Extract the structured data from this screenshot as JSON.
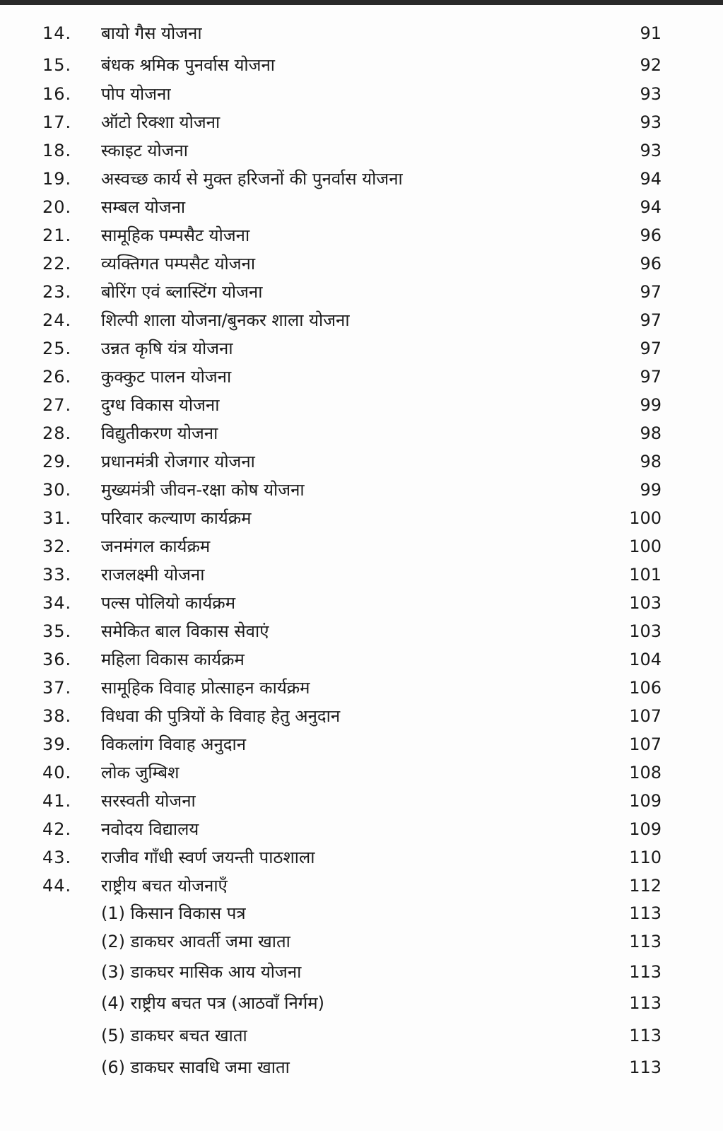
{
  "entries": [
    {
      "num": "14.",
      "title": "बायो गैस योजना",
      "page": "91"
    },
    {
      "num": "15.",
      "title": "बंधक श्रमिक पुनर्वास योजना",
      "page": "92"
    },
    {
      "num": "16.",
      "title": "पोप योजना",
      "page": "93"
    },
    {
      "num": "17.",
      "title": "ऑटो रिक्शा योजना",
      "page": "93"
    },
    {
      "num": "18.",
      "title": "स्काइट योजना",
      "page": "93"
    },
    {
      "num": "19.",
      "title": "अस्वच्छ कार्य से मुक्त हरिजनों की पुनर्वास योजना",
      "page": "94"
    },
    {
      "num": "20.",
      "title": "सम्बल योजना",
      "page": "94"
    },
    {
      "num": "21.",
      "title": "सामूहिक पम्पसैट योजना",
      "page": "96"
    },
    {
      "num": "22.",
      "title": "व्यक्तिगत पम्पसैट योजना",
      "page": "96"
    },
    {
      "num": "23.",
      "title": "बोरिंग एवं ब्लास्टिंग योजना",
      "page": "97"
    },
    {
      "num": "24.",
      "title": "शिल्पी शाला योजना/बुनकर शाला योजना",
      "page": "97"
    },
    {
      "num": "25.",
      "title": "उन्नत कृषि यंत्र योजना",
      "page": "97"
    },
    {
      "num": "26.",
      "title": "कुक्कुट पालन योजना",
      "page": "97"
    },
    {
      "num": "27.",
      "title": "दुग्ध विकास योजना",
      "page": "99"
    },
    {
      "num": "28.",
      "title": "विद्युतीकरण योजना",
      "page": "98"
    },
    {
      "num": "29.",
      "title": "प्रधानमंत्री रोजगार योजना",
      "page": "98"
    },
    {
      "num": "30.",
      "title": "मुख्यमंत्री जीवन-रक्षा कोष योजना",
      "page": "99"
    },
    {
      "num": "31.",
      "title": "परिवार कल्याण कार्यक्रम",
      "page": "100"
    },
    {
      "num": "32.",
      "title": "जनमंगल कार्यक्रम",
      "page": "100"
    },
    {
      "num": "33.",
      "title": "राजलक्ष्मी योजना",
      "page": "101"
    },
    {
      "num": "34.",
      "title": "पल्स पोलियो कार्यक्रम",
      "page": "103"
    },
    {
      "num": "35.",
      "title": "समेकित बाल विकास सेवाएं",
      "page": "103"
    },
    {
      "num": "36.",
      "title": "महिला विकास कार्यक्रम",
      "page": "104"
    },
    {
      "num": "37.",
      "title": "सामूहिक विवाह प्रोत्साहन कार्यक्रम",
      "page": "106"
    },
    {
      "num": "38.",
      "title": "विधवा की पुत्रियों के विवाह हेतु अनुदान",
      "page": "107"
    },
    {
      "num": "39.",
      "title": "विकलांग विवाह अनुदान",
      "page": "107"
    },
    {
      "num": "40.",
      "title": "लोक जुम्बिश",
      "page": "108"
    },
    {
      "num": "41.",
      "title": "सरस्वती योजना",
      "page": "109"
    },
    {
      "num": "42.",
      "title": "नवोदय विद्यालय",
      "page": "109"
    },
    {
      "num": "43.",
      "title": "राजीव गाँधी स्वर्ण जयन्ती पाठशाला",
      "page": "110"
    },
    {
      "num": "44.",
      "title": "राष्ट्रीय बचत योजनाएँ",
      "page": "112"
    }
  ],
  "sub_entries": [
    {
      "title": "(1) किसान विकास पत्र",
      "page": "113"
    },
    {
      "title": "(2) डाकघर आवर्ती जमा खाता",
      "page": "113"
    },
    {
      "title": "(3) डाकघर मासिक आय योजना",
      "page": "113"
    },
    {
      "title": "(4) राष्ट्रीय बचत पत्र (आठवाँ निर्गम)",
      "page": "113"
    },
    {
      "title": "(5) डाकघर बचत खाता",
      "page": "113"
    },
    {
      "title": "(6) डाकघर सावधि जमा खाता",
      "page": "113"
    }
  ]
}
